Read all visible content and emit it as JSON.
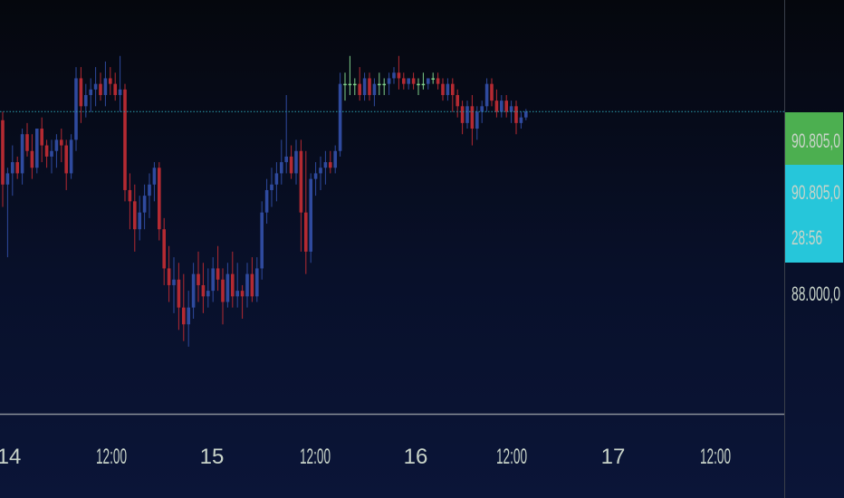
{
  "colors": {
    "bull": "#2f4a9e",
    "bear": "#b42a32",
    "doji": "#7fd08a",
    "price_line": "#2a9fb0",
    "axis_line": "#8a8f99",
    "badge_green": "#4caf50",
    "badge_cyan": "#26c6da",
    "label_text": "#c9d4c9",
    "badge_text": "#0b2a2a"
  },
  "price_axis": {
    "current_price_badge": "90.805,0",
    "last_price_badge": "90.805,0",
    "countdown": "28:56",
    "tick_label": "88.000,0"
  },
  "time_axis": {
    "labels": [
      "14",
      "12:00",
      "15",
      "12:00",
      "16",
      "12:00",
      "17",
      "12:00"
    ]
  },
  "chart_data": {
    "type": "candlestick",
    "ylim": [
      85400,
      92800
    ],
    "current_price": 90805,
    "grid": false,
    "candles": [
      [
        90650,
        90800,
        89100,
        89500
      ],
      [
        89500,
        89800,
        88200,
        89700
      ],
      [
        89700,
        90200,
        89300,
        89900
      ],
      [
        89900,
        90000,
        89600,
        89700
      ],
      [
        89700,
        90500,
        89500,
        90400
      ],
      [
        90400,
        90600,
        90000,
        90100
      ],
      [
        90100,
        90400,
        89600,
        89800
      ],
      [
        89800,
        90500,
        89700,
        90500
      ],
      [
        90500,
        90700,
        89900,
        90200
      ],
      [
        90200,
        90300,
        89800,
        90000
      ],
      [
        90000,
        90300,
        89700,
        90100
      ],
      [
        90100,
        90400,
        89800,
        90300
      ],
      [
        90300,
        90500,
        89900,
        90200
      ],
      [
        90200,
        90300,
        89400,
        89700
      ],
      [
        89700,
        90400,
        89600,
        90300
      ],
      [
        90300,
        91600,
        90100,
        91400
      ],
      [
        91400,
        91600,
        90600,
        90900
      ],
      [
        90900,
        91300,
        90700,
        91100
      ],
      [
        91100,
        91400,
        90800,
        91200
      ],
      [
        91200,
        91600,
        90900,
        91300
      ],
      [
        91300,
        91500,
        91000,
        91100
      ],
      [
        91100,
        91700,
        90900,
        91400
      ],
      [
        91400,
        91600,
        91100,
        91300
      ],
      [
        91300,
        91500,
        91000,
        91100
      ],
      [
        91100,
        91800,
        90800,
        91200
      ],
      [
        91200,
        91300,
        89200,
        89400
      ],
      [
        89400,
        89700,
        88700,
        89200
      ],
      [
        89200,
        89500,
        88300,
        88700
      ],
      [
        88700,
        89300,
        88500,
        89000
      ],
      [
        89000,
        89500,
        88700,
        89300
      ],
      [
        89300,
        89700,
        88900,
        89500
      ],
      [
        89500,
        89900,
        89200,
        89800
      ],
      [
        89800,
        89900,
        88500,
        88700
      ],
      [
        88700,
        88900,
        87700,
        88000
      ],
      [
        88000,
        88400,
        87400,
        87700
      ],
      [
        87700,
        88200,
        87200,
        87800
      ],
      [
        87800,
        88100,
        86900,
        87300
      ],
      [
        87300,
        87900,
        86700,
        87000
      ],
      [
        87000,
        87600,
        86600,
        87300
      ],
      [
        87300,
        88100,
        87100,
        87900
      ],
      [
        87900,
        88300,
        87400,
        87700
      ],
      [
        87700,
        88100,
        87200,
        87500
      ],
      [
        87500,
        88000,
        87300,
        87600
      ],
      [
        87600,
        88200,
        87400,
        88000
      ],
      [
        88000,
        88400,
        87600,
        87800
      ],
      [
        87800,
        88000,
        87000,
        87400
      ],
      [
        87400,
        88100,
        87300,
        87900
      ],
      [
        87900,
        88300,
        87300,
        87500
      ],
      [
        87500,
        88100,
        87300,
        87600
      ],
      [
        87600,
        87700,
        87100,
        87500
      ],
      [
        87500,
        88100,
        87300,
        87900
      ],
      [
        87900,
        88200,
        87400,
        87500
      ],
      [
        87500,
        88200,
        87400,
        88000
      ],
      [
        88000,
        89200,
        87800,
        89000
      ],
      [
        89000,
        89600,
        88800,
        89400
      ],
      [
        89400,
        89800,
        89100,
        89500
      ],
      [
        89500,
        89900,
        89200,
        89700
      ],
      [
        89700,
        90300,
        89500,
        89900
      ],
      [
        89900,
        91100,
        89700,
        90000
      ],
      [
        90000,
        90200,
        89600,
        89700
      ],
      [
        89700,
        90300,
        89500,
        90100
      ],
      [
        90100,
        90300,
        88300,
        89000
      ],
      [
        89000,
        90100,
        87900,
        88300
      ],
      [
        88300,
        89700,
        88100,
        89600
      ],
      [
        89600,
        89900,
        89300,
        89700
      ],
      [
        89700,
        90000,
        89400,
        89800
      ],
      [
        89800,
        90100,
        89500,
        89900
      ],
      [
        89900,
        90100,
        89700,
        89800
      ],
      [
        89800,
        90200,
        89700,
        90100
      ],
      [
        90100,
        91500,
        90000,
        91300
      ],
      [
        91300,
        91500,
        91000,
        91300
      ],
      [
        91300,
        91800,
        91100,
        91300
      ],
      [
        91300,
        91400,
        91100,
        91300
      ],
      [
        91300,
        91600,
        91000,
        91100
      ],
      [
        91100,
        91500,
        91000,
        91400
      ],
      [
        91400,
        91500,
        91000,
        91100
      ],
      [
        91100,
        91400,
        90900,
        91300
      ],
      [
        91300,
        91500,
        91100,
        91300
      ],
      [
        91300,
        91400,
        91100,
        91300
      ],
      [
        91300,
        91500,
        91100,
        91400
      ],
      [
        91400,
        91600,
        91300,
        91500
      ],
      [
        91500,
        91800,
        91200,
        91400
      ],
      [
        91400,
        91500,
        91200,
        91300
      ],
      [
        91300,
        91400,
        91200,
        91400
      ],
      [
        91400,
        91500,
        91200,
        91300
      ],
      [
        91300,
        91400,
        91100,
        91300
      ],
      [
        91300,
        91500,
        91200,
        91300
      ],
      [
        91300,
        91400,
        91200,
        91400
      ],
      [
        91400,
        91500,
        91300,
        91400
      ],
      [
        91400,
        91500,
        91200,
        91300
      ],
      [
        91300,
        91400,
        91000,
        91100
      ],
      [
        91100,
        91400,
        91000,
        91300
      ],
      [
        91300,
        91400,
        90800,
        91100
      ],
      [
        91100,
        91200,
        90700,
        90900
      ],
      [
        90900,
        91000,
        90400,
        90600
      ],
      [
        90600,
        91000,
        90500,
        90900
      ],
      [
        90900,
        91100,
        90200,
        90500
      ],
      [
        90500,
        90900,
        90300,
        90800
      ],
      [
        90800,
        91000,
        90600,
        90900
      ],
      [
        90900,
        91400,
        90800,
        91300
      ],
      [
        91300,
        91400,
        90900,
        91000
      ],
      [
        91000,
        91200,
        90700,
        90800
      ],
      [
        90800,
        91100,
        90700,
        91000
      ],
      [
        91000,
        91100,
        90700,
        90800
      ],
      [
        90800,
        91000,
        90600,
        90900
      ],
      [
        90900,
        91000,
        90400,
        90600
      ],
      [
        90600,
        90800,
        90500,
        90700
      ],
      [
        90700,
        90850,
        90650,
        90805
      ]
    ]
  }
}
